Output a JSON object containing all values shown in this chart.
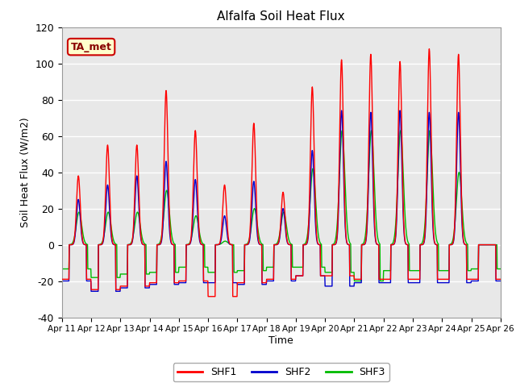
{
  "title": "Alfalfa Soil Heat Flux",
  "xlabel": "Time",
  "ylabel": "Soil Heat Flux (W/m2)",
  "ylim": [
    -40,
    120
  ],
  "background_color": "#e8e8e8",
  "line_colors": {
    "SHF1": "#ff0000",
    "SHF2": "#0000cd",
    "SHF3": "#00bb00"
  },
  "line_width": 1.0,
  "annotation_text": "TA_met",
  "annotation_bg": "#ffffcc",
  "annotation_border": "#cc0000",
  "xtick_labels": [
    "Apr 11",
    "Apr 12",
    "Apr 13",
    "Apr 14",
    "Apr 15",
    "Apr 16",
    "Apr 17",
    "Apr 18",
    "Apr 19",
    "Apr 20",
    "Apr 21",
    "Apr 22",
    "Apr 23",
    "Apr 24",
    "Apr 25",
    "Apr 26"
  ],
  "ytick_values": [
    -40,
    -20,
    0,
    20,
    40,
    60,
    80,
    100,
    120
  ],
  "day_peaks_shf1": [
    38,
    55,
    55,
    85,
    63,
    33,
    67,
    29,
    87,
    102,
    105,
    101,
    108,
    105,
    0
  ],
  "day_peaks_shf2": [
    25,
    33,
    38,
    46,
    36,
    16,
    35,
    20,
    52,
    74,
    73,
    74,
    73,
    73,
    0
  ],
  "day_peaks_shf3": [
    18,
    18,
    18,
    30,
    16,
    2,
    20,
    18,
    42,
    63,
    63,
    63,
    63,
    40,
    0
  ],
  "night_min_shf1": [
    -20,
    -26,
    -24,
    -22,
    -21,
    -30,
    -22,
    -20,
    -18,
    -18,
    -20,
    -20,
    -20,
    -20,
    -20
  ],
  "night_min_shf2": [
    -21,
    -27,
    -25,
    -23,
    -22,
    -22,
    -23,
    -21,
    -18,
    -24,
    -22,
    -22,
    -22,
    -22,
    -21
  ],
  "night_min_shf3": [
    -14,
    -19,
    -17,
    -16,
    -13,
    -16,
    -15,
    -13,
    -13,
    -16,
    -21,
    -15,
    -15,
    -15,
    -14
  ],
  "num_days": 15,
  "pts_per_day": 96
}
